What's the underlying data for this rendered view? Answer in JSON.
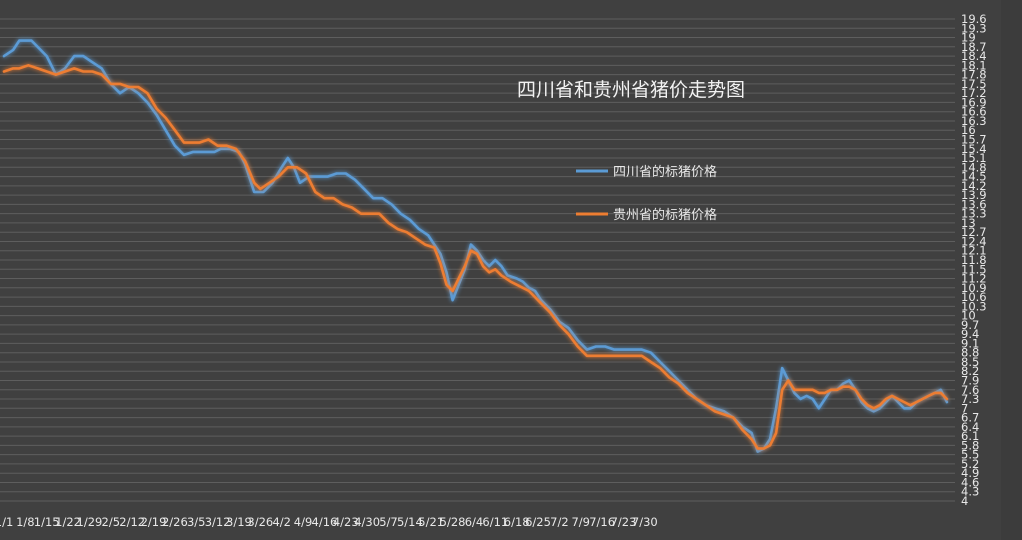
{
  "chart_data": {
    "type": "line",
    "title": "四川省和贵州省猪价走势图",
    "xlabel": "",
    "ylabel": "",
    "ylim": [
      4,
      19.6
    ],
    "yticks": [
      "19.6",
      "19.3",
      "19",
      "18.7",
      "18.4",
      "18.1",
      "17.8",
      "17.5",
      "17.2",
      "16.9",
      "16.6",
      "16.3",
      "16",
      "15.7",
      "15.4",
      "15.1",
      "14.8",
      "14.5",
      "14.2",
      "13.9",
      "13.6",
      "13.3",
      "13",
      "12.7",
      "12.4",
      "12.1",
      "11.8",
      "11.5",
      "11.2",
      "10.9",
      "10.6",
      "10.3",
      "10",
      "9.7",
      "9.4",
      "9.1",
      "8.8",
      "8.5",
      "8.2",
      "7.9",
      "7.6",
      "7.3",
      "7",
      "6.7",
      "6.4",
      "6.1",
      "5.8",
      "5.5",
      "5.2",
      "4.9",
      "4.6",
      "4.3",
      "4"
    ],
    "xticks": [
      "1/1",
      "1/8",
      "1/15",
      "1/22",
      "1/29",
      "2/5",
      "2/12",
      "2/19",
      "2/26",
      "3/5",
      "3/12",
      "3/19",
      "3/26",
      "4/2",
      "4/9",
      "4/16",
      "4/23",
      "4/30",
      "5/7",
      "5/14",
      "5/21",
      "5/28",
      "6/4",
      "6/11",
      "6/18",
      "6/25",
      "7/2",
      "7/9",
      "7/16",
      "7/23",
      "7/30"
    ],
    "x_day_range": [
      0,
      220
    ],
    "grid": true,
    "legend_position": "right-middle",
    "series": [
      {
        "name": "四川省的标猪价格",
        "color": "#5b9bd5",
        "points": [
          [
            0,
            18.4
          ],
          [
            3,
            18.6
          ],
          [
            5,
            18.9
          ],
          [
            9,
            18.9
          ],
          [
            12,
            18.6
          ],
          [
            14,
            18.4
          ],
          [
            17,
            17.8
          ],
          [
            20,
            18.0
          ],
          [
            23,
            18.4
          ],
          [
            26,
            18.4
          ],
          [
            29,
            18.2
          ],
          [
            32,
            18.0
          ],
          [
            35,
            17.5
          ],
          [
            38,
            17.2
          ],
          [
            41,
            17.4
          ],
          [
            44,
            17.2
          ],
          [
            47,
            16.9
          ],
          [
            50,
            16.5
          ],
          [
            53,
            16.0
          ],
          [
            56,
            15.5
          ],
          [
            59,
            15.2
          ],
          [
            62,
            15.3
          ],
          [
            65,
            15.3
          ],
          [
            69,
            15.3
          ],
          [
            71,
            15.4
          ],
          [
            74,
            15.4
          ],
          [
            77,
            15.3
          ],
          [
            79,
            14.9
          ],
          [
            82,
            14.0
          ],
          [
            85,
            14.0
          ],
          [
            88,
            14.3
          ],
          [
            91,
            14.8
          ],
          [
            93,
            15.1
          ],
          [
            95,
            14.8
          ],
          [
            97,
            14.3
          ],
          [
            100,
            14.5
          ],
          [
            103,
            14.5
          ],
          [
            106,
            14.5
          ],
          [
            109,
            14.6
          ],
          [
            112,
            14.6
          ],
          [
            115,
            14.4
          ],
          [
            118,
            14.1
          ],
          [
            121,
            13.8
          ],
          [
            124,
            13.8
          ],
          [
            127,
            13.6
          ],
          [
            130,
            13.3
          ],
          [
            133,
            13.1
          ],
          [
            136,
            12.8
          ],
          [
            139,
            12.6
          ],
          [
            141,
            12.3
          ],
          [
            143,
            12.0
          ],
          [
            145,
            11.4
          ],
          [
            147,
            10.5
          ],
          [
            149,
            11.0
          ],
          [
            151,
            11.5
          ],
          [
            153,
            12.3
          ],
          [
            155,
            12.1
          ],
          [
            157,
            11.8
          ],
          [
            159,
            11.6
          ],
          [
            161,
            11.8
          ],
          [
            163,
            11.6
          ],
          [
            165,
            11.3
          ],
          [
            168,
            11.2
          ],
          [
            170,
            11.1
          ],
          [
            172,
            10.9
          ],
          [
            174,
            10.8
          ],
          [
            176,
            10.5
          ],
          [
            179,
            10.2
          ],
          [
            182,
            9.8
          ],
          [
            185,
            9.6
          ],
          [
            188,
            9.2
          ],
          [
            191,
            8.9
          ],
          [
            194,
            9.0
          ],
          [
            197,
            9.0
          ],
          [
            200,
            8.9
          ],
          [
            203,
            8.9
          ],
          [
            206,
            8.9
          ],
          [
            209,
            8.9
          ],
          [
            212,
            8.8
          ],
          [
            215,
            8.5
          ],
          [
            218,
            8.2
          ],
          [
            221,
            7.9
          ],
          [
            224,
            7.6
          ],
          [
            227,
            7.3
          ],
          [
            230,
            7.1
          ],
          [
            233,
            7.0
          ],
          [
            236,
            6.9
          ],
          [
            239,
            6.7
          ],
          [
            242,
            6.4
          ],
          [
            245,
            6.2
          ],
          [
            247,
            5.6
          ],
          [
            249,
            5.7
          ],
          [
            251,
            6.0
          ],
          [
            253,
            7.0
          ],
          [
            255,
            8.3
          ],
          [
            257,
            7.9
          ],
          [
            259,
            7.5
          ],
          [
            261,
            7.3
          ],
          [
            263,
            7.4
          ],
          [
            265,
            7.3
          ],
          [
            267,
            7.0
          ],
          [
            269,
            7.3
          ],
          [
            271,
            7.6
          ],
          [
            273,
            7.6
          ],
          [
            275,
            7.8
          ],
          [
            277,
            7.9
          ],
          [
            279,
            7.6
          ],
          [
            281,
            7.2
          ],
          [
            283,
            7.0
          ],
          [
            285,
            6.9
          ],
          [
            287,
            7.0
          ],
          [
            289,
            7.2
          ],
          [
            291,
            7.4
          ],
          [
            293,
            7.2
          ],
          [
            295,
            7.0
          ],
          [
            297,
            7.0
          ],
          [
            299,
            7.2
          ],
          [
            301,
            7.3
          ],
          [
            303,
            7.4
          ],
          [
            305,
            7.5
          ],
          [
            307,
            7.6
          ],
          [
            309,
            7.2
          ]
        ]
      },
      {
        "name": "贵州省的标猪价格",
        "color": "#ed7d31",
        "points": [
          [
            0,
            17.9
          ],
          [
            3,
            18.0
          ],
          [
            5,
            18.0
          ],
          [
            8,
            18.1
          ],
          [
            11,
            18.0
          ],
          [
            14,
            17.9
          ],
          [
            17,
            17.8
          ],
          [
            20,
            17.9
          ],
          [
            23,
            18.0
          ],
          [
            26,
            17.9
          ],
          [
            29,
            17.9
          ],
          [
            32,
            17.8
          ],
          [
            35,
            17.5
          ],
          [
            38,
            17.5
          ],
          [
            41,
            17.4
          ],
          [
            44,
            17.4
          ],
          [
            47,
            17.2
          ],
          [
            50,
            16.7
          ],
          [
            53,
            16.4
          ],
          [
            56,
            16.0
          ],
          [
            59,
            15.6
          ],
          [
            62,
            15.6
          ],
          [
            64,
            15.6
          ],
          [
            67,
            15.7
          ],
          [
            70,
            15.5
          ],
          [
            73,
            15.5
          ],
          [
            76,
            15.4
          ],
          [
            79,
            15.0
          ],
          [
            82,
            14.3
          ],
          [
            84,
            14.1
          ],
          [
            87,
            14.3
          ],
          [
            90,
            14.5
          ],
          [
            93,
            14.8
          ],
          [
            96,
            14.8
          ],
          [
            99,
            14.6
          ],
          [
            102,
            14.0
          ],
          [
            105,
            13.8
          ],
          [
            108,
            13.8
          ],
          [
            111,
            13.6
          ],
          [
            114,
            13.5
          ],
          [
            117,
            13.3
          ],
          [
            120,
            13.3
          ],
          [
            123,
            13.3
          ],
          [
            126,
            13.0
          ],
          [
            129,
            12.8
          ],
          [
            132,
            12.7
          ],
          [
            135,
            12.5
          ],
          [
            138,
            12.3
          ],
          [
            141,
            12.2
          ],
          [
            143,
            11.7
          ],
          [
            145,
            11.0
          ],
          [
            147,
            10.8
          ],
          [
            149,
            11.2
          ],
          [
            151,
            11.6
          ],
          [
            153,
            12.1
          ],
          [
            155,
            12.0
          ],
          [
            157,
            11.6
          ],
          [
            159,
            11.4
          ],
          [
            161,
            11.5
          ],
          [
            163,
            11.3
          ],
          [
            166,
            11.1
          ],
          [
            168,
            11.0
          ],
          [
            170,
            10.9
          ],
          [
            172,
            10.8
          ],
          [
            174,
            10.6
          ],
          [
            176,
            10.4
          ],
          [
            179,
            10.1
          ],
          [
            182,
            9.7
          ],
          [
            185,
            9.4
          ],
          [
            188,
            9.0
          ],
          [
            191,
            8.7
          ],
          [
            194,
            8.7
          ],
          [
            197,
            8.7
          ],
          [
            200,
            8.7
          ],
          [
            203,
            8.7
          ],
          [
            206,
            8.7
          ],
          [
            209,
            8.7
          ],
          [
            212,
            8.5
          ],
          [
            215,
            8.3
          ],
          [
            218,
            8.0
          ],
          [
            221,
            7.8
          ],
          [
            224,
            7.5
          ],
          [
            227,
            7.3
          ],
          [
            230,
            7.1
          ],
          [
            233,
            6.9
          ],
          [
            236,
            6.8
          ],
          [
            239,
            6.7
          ],
          [
            242,
            6.3
          ],
          [
            245,
            6.0
          ],
          [
            247,
            5.7
          ],
          [
            249,
            5.7
          ],
          [
            251,
            5.8
          ],
          [
            253,
            6.2
          ],
          [
            255,
            7.6
          ],
          [
            257,
            7.9
          ],
          [
            259,
            7.6
          ],
          [
            261,
            7.6
          ],
          [
            263,
            7.6
          ],
          [
            265,
            7.6
          ],
          [
            267,
            7.5
          ],
          [
            269,
            7.5
          ],
          [
            271,
            7.6
          ],
          [
            273,
            7.6
          ],
          [
            275,
            7.7
          ],
          [
            277,
            7.7
          ],
          [
            279,
            7.6
          ],
          [
            281,
            7.3
          ],
          [
            283,
            7.1
          ],
          [
            285,
            7.0
          ],
          [
            287,
            7.1
          ],
          [
            289,
            7.3
          ],
          [
            291,
            7.4
          ],
          [
            293,
            7.3
          ],
          [
            295,
            7.2
          ],
          [
            297,
            7.1
          ],
          [
            299,
            7.2
          ],
          [
            301,
            7.3
          ],
          [
            303,
            7.4
          ],
          [
            305,
            7.5
          ],
          [
            307,
            7.5
          ],
          [
            309,
            7.3
          ]
        ]
      }
    ]
  }
}
